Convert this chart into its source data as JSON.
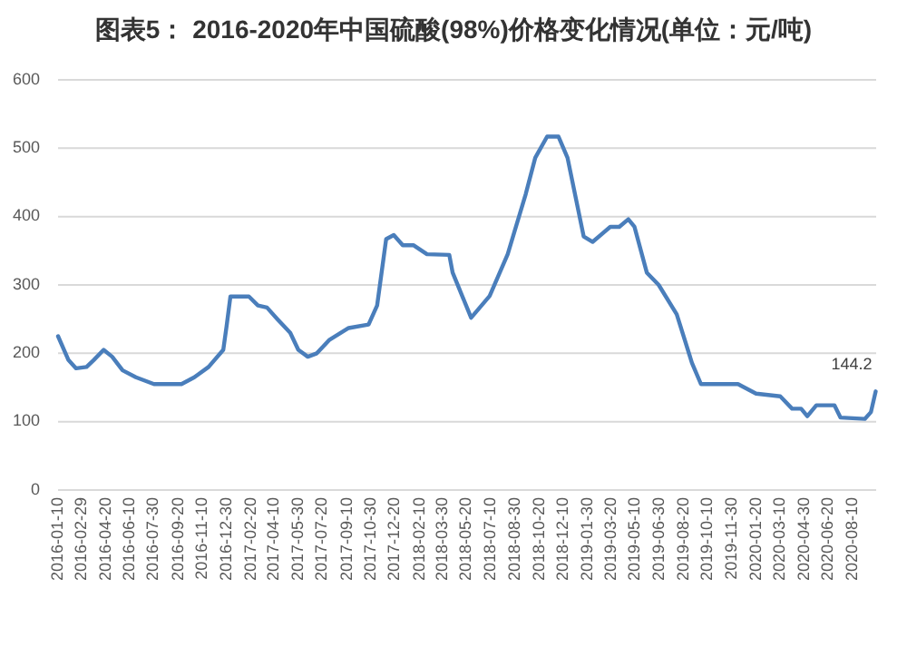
{
  "chart_data": {
    "type": "line",
    "title": "图表5： 2016-2020年中国硫酸(98%)价格变化情况(单位：元/吨)",
    "x": [
      "2016-01-10",
      "2016-02-01",
      "2016-02-17",
      "2016-03-10",
      "2016-03-25",
      "2016-04-15",
      "2016-05-03",
      "2016-05-25",
      "2016-06-22",
      "2016-07-30",
      "2016-09-26",
      "2016-10-23",
      "2016-11-22",
      "2016-12-23",
      "2016-12-30",
      "2017-01-07",
      "2017-02-15",
      "2017-03-06",
      "2017-03-25",
      "2017-04-16",
      "2017-05-13",
      "2017-05-30",
      "2017-06-19",
      "2017-07-08",
      "2017-08-04",
      "2017-09-13",
      "2017-10-25",
      "2017-11-12",
      "2017-12-01",
      "2017-12-17",
      "2018-01-05",
      "2018-01-28",
      "2018-02-25",
      "2018-04-13",
      "2018-04-20",
      "2018-05-29",
      "2018-07-07",
      "2018-08-14",
      "2018-09-21",
      "2018-10-11",
      "2018-11-05",
      "2018-11-29",
      "2018-12-18",
      "2019-01-21",
      "2019-02-09",
      "2019-03-18",
      "2019-04-06",
      "2019-04-25",
      "2019-05-08",
      "2019-06-03",
      "2019-06-28",
      "2019-08-05",
      "2019-09-06",
      "2019-09-25",
      "2019-12-12",
      "2020-01-19",
      "2020-03-10",
      "2020-04-04",
      "2020-04-23",
      "2020-05-06",
      "2020-05-25",
      "2020-07-02",
      "2020-07-15",
      "2020-09-04",
      "2020-09-17",
      "2020-09-27"
    ],
    "series": [
      {
        "color": "#4a7ebb",
        "values": [
          225,
          190,
          178,
          180,
          190,
          205,
          195,
          175,
          165,
          155,
          155,
          165,
          180,
          205,
          240,
          283,
          283,
          270,
          267,
          250,
          230,
          205,
          195,
          200,
          220,
          237,
          242,
          270,
          367,
          373,
          358,
          358,
          345,
          344,
          318,
          252,
          284,
          345,
          433,
          486,
          517,
          517,
          486,
          371,
          363,
          385,
          385,
          396,
          385,
          318,
          300,
          257,
          186,
          155,
          155,
          141,
          137,
          119,
          119,
          108,
          124,
          124,
          106,
          104,
          114,
          144.2
        ],
        "value_labels": [
          null,
          null,
          null,
          null,
          null,
          null,
          null,
          null,
          null,
          null,
          null,
          null,
          null,
          null,
          null,
          null,
          null,
          null,
          null,
          null,
          null,
          null,
          null,
          null,
          null,
          null,
          null,
          null,
          null,
          null,
          null,
          null,
          null,
          null,
          null,
          null,
          null,
          null,
          null,
          null,
          null,
          null,
          null,
          null,
          null,
          null,
          null,
          null,
          null,
          null,
          null,
          null,
          null,
          null,
          null,
          null,
          null,
          null,
          null,
          null,
          null,
          null,
          null,
          null,
          null,
          "144.2"
        ]
      }
    ],
    "xlim": [
      "2016-01-10",
      "2020-09-28"
    ],
    "xticks": [
      "2016-01-10",
      "2016-02-29",
      "2016-04-20",
      "2016-06-10",
      "2016-07-30",
      "2016-09-20",
      "2016-11-10",
      "2016-12-30",
      "2017-02-20",
      "2017-04-10",
      "2017-05-30",
      "2017-07-20",
      "2017-09-10",
      "2017-10-30",
      "2017-12-20",
      "2018-02-10",
      "2018-03-30",
      "2018-05-20",
      "2018-07-10",
      "2018-08-30",
      "2018-10-20",
      "2018-12-10",
      "2019-01-30",
      "2019-03-20",
      "2019-05-10",
      "2019-06-30",
      "2019-08-20",
      "2019-10-10",
      "2019-11-30",
      "2020-01-20",
      "2020-03-10",
      "2020-04-30",
      "2020-06-20",
      "2020-08-10"
    ],
    "ylim": [
      0,
      600
    ],
    "yticks": [
      0,
      100,
      200,
      300,
      400,
      500,
      600
    ],
    "grid": "y"
  }
}
